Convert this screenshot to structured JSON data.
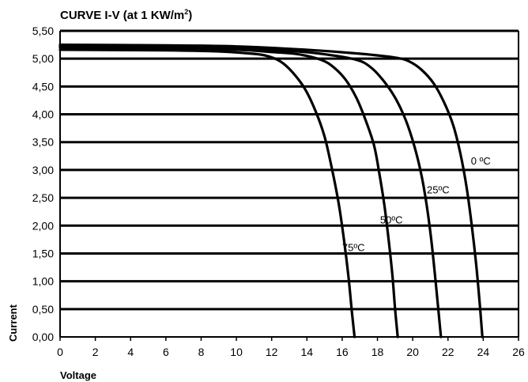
{
  "chart_data": {
    "type": "line",
    "title_main": "CURVE I-V (at 1 KW/m",
    "title_sup": "2",
    "title_end": ")",
    "xlabel": "Voltage",
    "ylabel": "Current",
    "xlim": [
      0,
      26
    ],
    "ylim": [
      0,
      5.5
    ],
    "x_ticks": [
      0,
      2,
      4,
      6,
      8,
      10,
      12,
      14,
      16,
      18,
      20,
      22,
      24,
      26
    ],
    "x_tick_labels": [
      "0",
      "2",
      "4",
      "6",
      "8",
      "10",
      "12",
      "14",
      "16",
      "18",
      "20",
      "22",
      "24",
      "26"
    ],
    "y_ticks": [
      0,
      0.5,
      1,
      1.5,
      2,
      2.5,
      3,
      3.5,
      4,
      4.5,
      5,
      5.5
    ],
    "y_tick_labels": [
      "0,00",
      "0,50",
      "1,00",
      "1,50",
      "2,00",
      "2,50",
      "3,00",
      "3,50",
      "4,00",
      "4,50",
      "5,00",
      "5,50"
    ],
    "grid": "horizontal",
    "series": [
      {
        "name": "0 ºC",
        "x": [
          0,
          6,
          10,
          14,
          17,
          19,
          19.8,
          20.5,
          21.2,
          21.8,
          22.3,
          22.7,
          23.05,
          23.35,
          23.6,
          23.8,
          23.95
        ],
        "y": [
          5.25,
          5.24,
          5.22,
          5.16,
          5.09,
          5.02,
          4.95,
          4.8,
          4.55,
          4.2,
          3.8,
          3.3,
          2.7,
          2.0,
          1.3,
          0.6,
          0
        ]
      },
      {
        "name": "25ºC",
        "x": [
          0,
          6,
          10,
          13,
          15,
          16.8,
          17.6,
          18.3,
          19.0,
          19.6,
          20.1,
          20.5,
          20.8,
          21.05,
          21.25,
          21.45,
          21.6
        ],
        "y": [
          5.22,
          5.2,
          5.18,
          5.14,
          5.08,
          4.98,
          4.85,
          4.62,
          4.3,
          3.9,
          3.42,
          2.9,
          2.35,
          1.75,
          1.15,
          0.5,
          0
        ]
      },
      {
        "name": "50ºC",
        "x": [
          0,
          6,
          10,
          12,
          13.5,
          14.8,
          15.5,
          16.2,
          16.8,
          17.3,
          17.8,
          18.1,
          18.4,
          18.65,
          18.85,
          19.0,
          19.15
        ],
        "y": [
          5.2,
          5.18,
          5.16,
          5.12,
          5.08,
          4.98,
          4.85,
          4.62,
          4.3,
          3.92,
          3.45,
          2.95,
          2.35,
          1.7,
          1.1,
          0.5,
          0
        ]
      },
      {
        "name": "75ºC",
        "x": [
          0,
          6,
          9,
          10.5,
          11.6,
          12.5,
          13.2,
          13.9,
          14.5,
          15.0,
          15.4,
          15.8,
          16.1,
          16.35,
          16.55,
          16.7
        ],
        "y": [
          5.16,
          5.15,
          5.13,
          5.1,
          5.06,
          4.95,
          4.75,
          4.45,
          4.05,
          3.6,
          3.05,
          2.4,
          1.75,
          1.1,
          0.45,
          0
        ]
      }
    ],
    "annotations": [
      "0 ºC",
      "25ºC",
      "50ºC",
      "75ºC"
    ]
  }
}
